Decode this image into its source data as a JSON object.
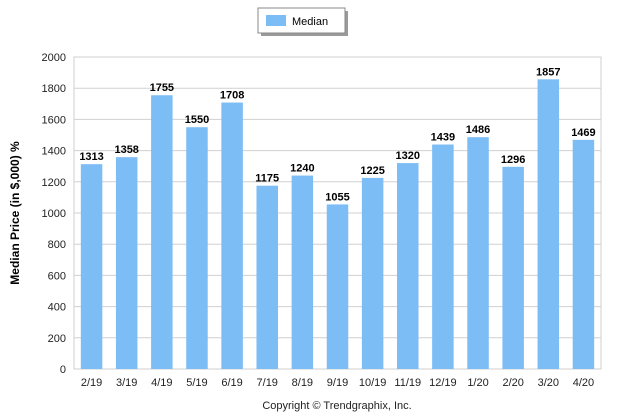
{
  "chart_data": {
    "type": "bar",
    "categories": [
      "2/19",
      "3/19",
      "4/19",
      "5/19",
      "6/19",
      "7/19",
      "8/19",
      "9/19",
      "10/19",
      "11/19",
      "12/19",
      "1/20",
      "2/20",
      "3/20",
      "4/20"
    ],
    "series": [
      {
        "name": "Median",
        "values": [
          1313,
          1358,
          1755,
          1550,
          1708,
          1175,
          1240,
          1055,
          1225,
          1320,
          1439,
          1486,
          1296,
          1857,
          1469
        ]
      }
    ],
    "ylabel": "Median Price (in $,000) %",
    "xlabel": "",
    "ylim": [
      0,
      2000
    ],
    "yticks": [
      0,
      200,
      400,
      600,
      800,
      1000,
      1200,
      1400,
      1600,
      1800,
      2000
    ],
    "grid": true,
    "legend": "top-center",
    "bar_color": "#7dbdf5",
    "footer": "Copyright © Trendgraphix, Inc."
  }
}
